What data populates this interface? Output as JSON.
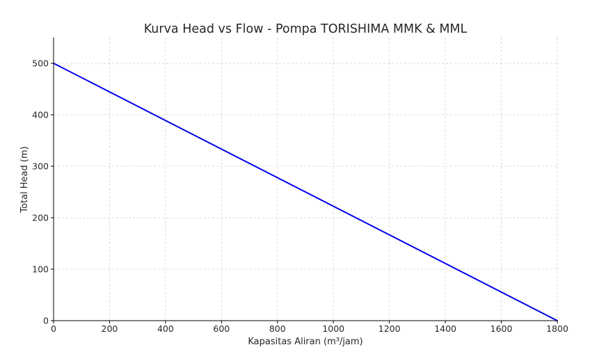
{
  "chart_data": {
    "type": "line",
    "title": "Kurva Head vs Flow - Pompa TORISHIMA MMK & MML",
    "xlabel": "Kapasitas Aliran (m³/jam)",
    "ylabel": "Total Head (m)",
    "xlim": [
      0,
      1800
    ],
    "ylim": [
      0,
      550
    ],
    "xticks": [
      0,
      200,
      400,
      600,
      800,
      1000,
      1200,
      1400,
      1600,
      1800
    ],
    "yticks": [
      0,
      100,
      200,
      300,
      400,
      500
    ],
    "grid": true,
    "series": [
      {
        "color": "#0000ee",
        "x": [
          0,
          1800
        ],
        "y": [
          500,
          0
        ]
      }
    ]
  }
}
